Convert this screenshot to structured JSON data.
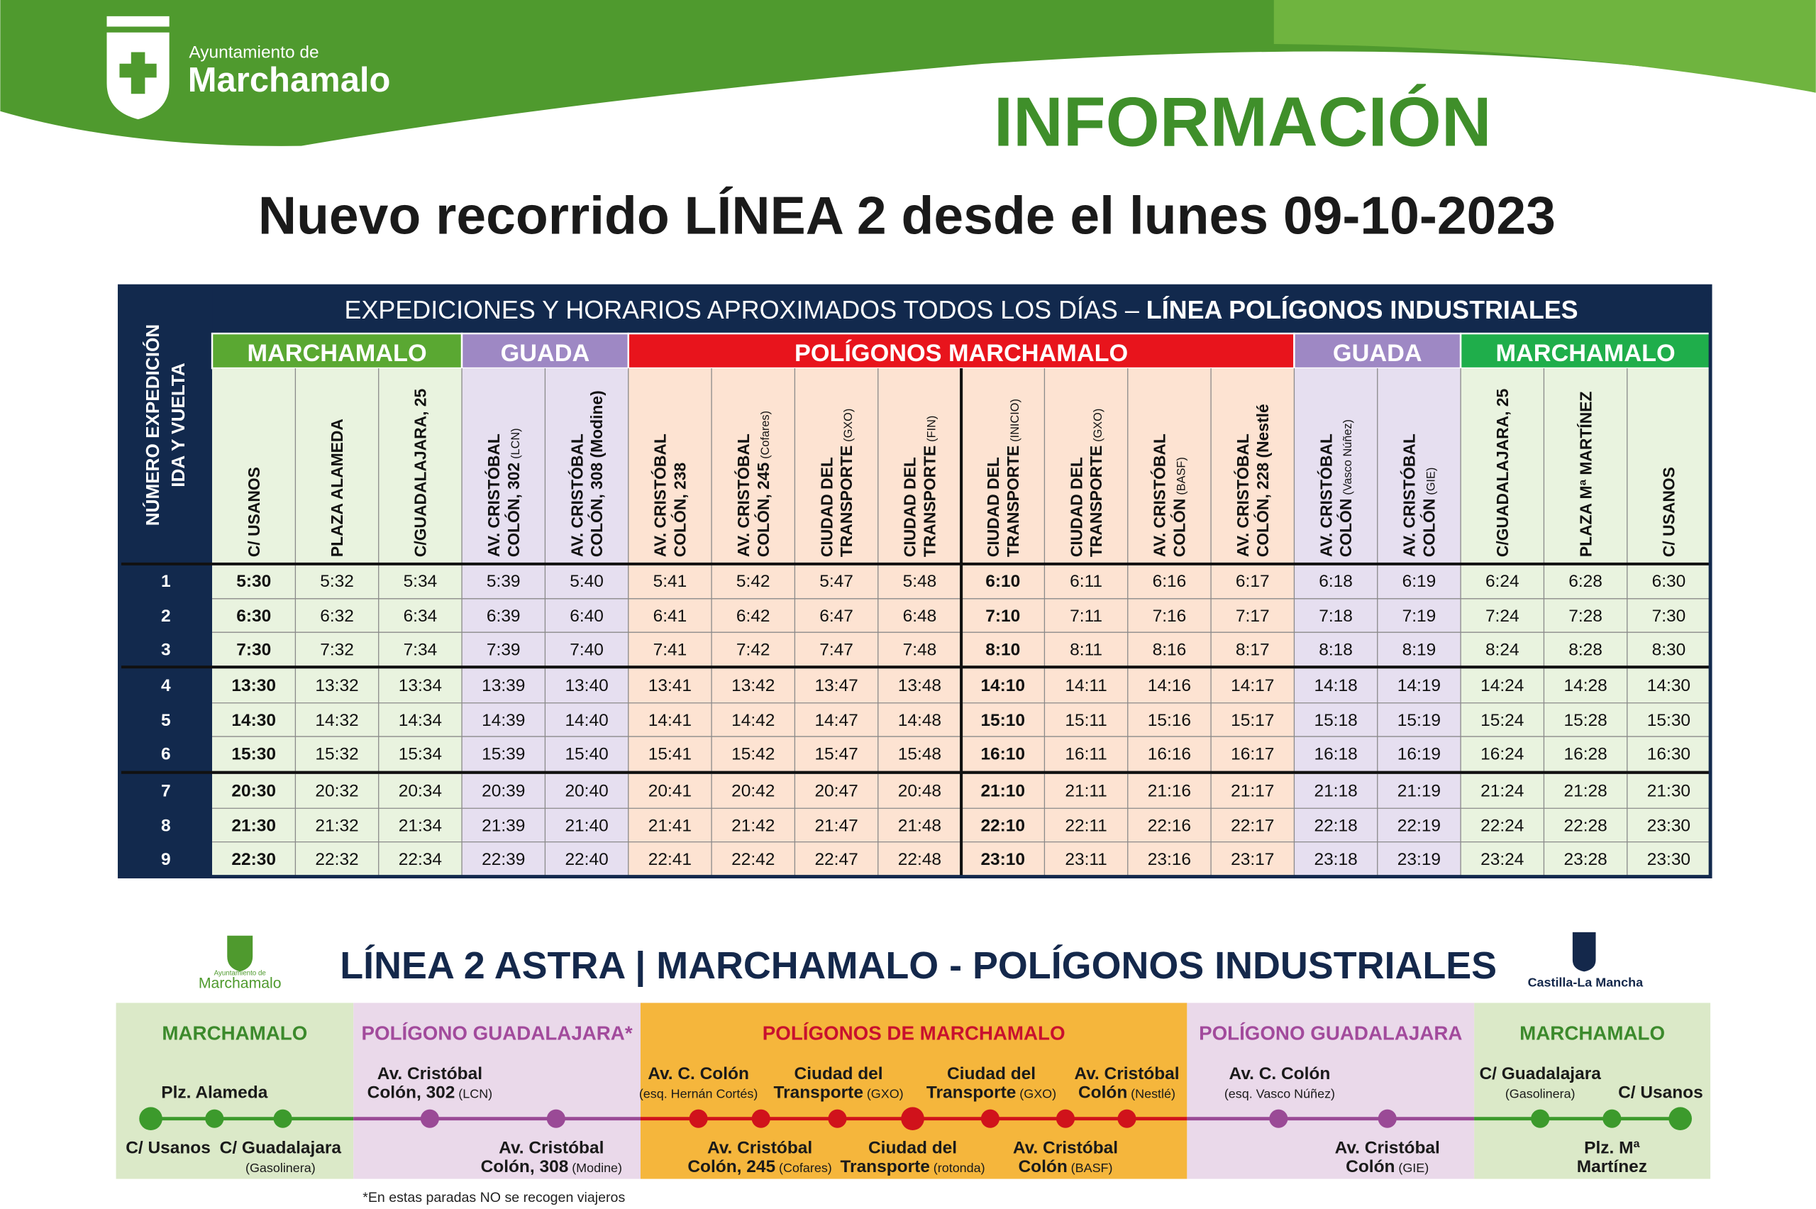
{
  "header": {
    "org_small": "Ayuntamiento de",
    "org": "Marchamalo",
    "label": "INFORMACIÓN",
    "title": "Nuevo recorrido LÍNEA 2 desde el lunes 09-10-2023"
  },
  "table": {
    "corner": [
      "NÚMERO EXPEDICIÓN",
      "IDA Y VUELTA"
    ],
    "banner": [
      "EXPEDICIONES Y HORARIOS APROXIMADOS TODOS LOS DÍAS – ",
      "LÍNEA POLÍGONOS INDUSTRIALES"
    ],
    "zones": [
      {
        "name": "MARCHAMALO",
        "stops": [
          {
            "lines": [
              "C/ USANOS"
            ]
          },
          {
            "lines": [
              "PLAZA ALAMEDA"
            ]
          },
          {
            "lines": [
              "C/GUADALAJARA, 25"
            ]
          }
        ]
      },
      {
        "name": "GUADA",
        "stops": [
          {
            "lines": [
              "AV. CRISTÓBAL",
              "COLÓN, 302"
            ],
            "note": "(LCN)"
          },
          {
            "lines": [
              "AV. CRISTÓBAL",
              "COLÓN, 308 (Modine)"
            ]
          }
        ]
      },
      {
        "name": "POLÍGONOS MARCHAMALO",
        "stops": [
          {
            "lines": [
              "AV. CRISTÓBAL",
              "COLÓN, 238"
            ]
          },
          {
            "lines": [
              "AV. CRISTÓBAL",
              "COLÓN, 245"
            ],
            "note": "(Cofares)"
          },
          {
            "lines": [
              "CIUDAD DEL",
              "TRANSPORTE"
            ],
            "note": "(GXO)"
          },
          {
            "lines": [
              "CIUDAD DEL",
              "TRANSPORTE"
            ],
            "note": "(FIN)"
          },
          {
            "lines": [
              "CIUDAD DEL",
              "TRANSPORTE"
            ],
            "note": "(INICIO)"
          },
          {
            "lines": [
              "CIUDAD DEL",
              "TRANSPORTE"
            ],
            "note": "(GXO)"
          },
          {
            "lines": [
              "AV. CRISTÓBAL",
              "COLÓN"
            ],
            "note": "(BASF)"
          },
          {
            "lines": [
              "AV. CRISTÓBAL",
              "COLÓN, 228 (Nestlé"
            ]
          }
        ]
      },
      {
        "name": "GUADA",
        "stops": [
          {
            "lines": [
              "AV. CRISTÓBAL",
              "COLÓN"
            ],
            "note": "(Vasco Núñez)"
          },
          {
            "lines": [
              "AV. CRISTÓBAL",
              "COLÓN"
            ],
            "note": "(GIE)"
          }
        ]
      },
      {
        "name": "MARCHAMALO",
        "stops": [
          {
            "lines": [
              "C/GUADALAJARA, 25"
            ]
          },
          {
            "lines": [
              "PLAZA Mª MARTÍNEZ"
            ]
          },
          {
            "lines": [
              "C/ USANOS"
            ]
          }
        ]
      }
    ],
    "rows": [
      [
        "1",
        "5:30",
        "5:32",
        "5:34",
        "5:39",
        "5:40",
        "5:41",
        "5:42",
        "5:47",
        "5:48",
        "6:10",
        "6:11",
        "6:16",
        "6:17",
        "6:18",
        "6:19",
        "6:24",
        "6:28",
        "6:30"
      ],
      [
        "2",
        "6:30",
        "6:32",
        "6:34",
        "6:39",
        "6:40",
        "6:41",
        "6:42",
        "6:47",
        "6:48",
        "7:10",
        "7:11",
        "7:16",
        "7:17",
        "7:18",
        "7:19",
        "7:24",
        "7:28",
        "7:30"
      ],
      [
        "3",
        "7:30",
        "7:32",
        "7:34",
        "7:39",
        "7:40",
        "7:41",
        "7:42",
        "7:47",
        "7:48",
        "8:10",
        "8:11",
        "8:16",
        "8:17",
        "8:18",
        "8:19",
        "8:24",
        "8:28",
        "8:30"
      ],
      [
        "4",
        "13:30",
        "13:32",
        "13:34",
        "13:39",
        "13:40",
        "13:41",
        "13:42",
        "13:47",
        "13:48",
        "14:10",
        "14:11",
        "14:16",
        "14:17",
        "14:18",
        "14:19",
        "14:24",
        "14:28",
        "14:30"
      ],
      [
        "5",
        "14:30",
        "14:32",
        "14:34",
        "14:39",
        "14:40",
        "14:41",
        "14:42",
        "14:47",
        "14:48",
        "15:10",
        "15:11",
        "15:16",
        "15:17",
        "15:18",
        "15:19",
        "15:24",
        "15:28",
        "15:30"
      ],
      [
        "6",
        "15:30",
        "15:32",
        "15:34",
        "15:39",
        "15:40",
        "15:41",
        "15:42",
        "15:47",
        "15:48",
        "16:10",
        "16:11",
        "16:16",
        "16:17",
        "16:18",
        "16:19",
        "16:24",
        "16:28",
        "16:30"
      ],
      [
        "7",
        "20:30",
        "20:32",
        "20:34",
        "20:39",
        "20:40",
        "20:41",
        "20:42",
        "20:47",
        "20:48",
        "21:10",
        "21:11",
        "21:16",
        "21:17",
        "21:18",
        "21:19",
        "21:24",
        "21:28",
        "21:30"
      ],
      [
        "8",
        "21:30",
        "21:32",
        "21:34",
        "21:39",
        "21:40",
        "21:41",
        "21:42",
        "21:47",
        "21:48",
        "22:10",
        "22:11",
        "22:16",
        "22:17",
        "22:18",
        "22:19",
        "22:24",
        "22:28",
        "23:30"
      ],
      [
        "9",
        "22:30",
        "22:32",
        "22:34",
        "22:39",
        "22:40",
        "22:41",
        "22:42",
        "22:47",
        "22:48",
        "23:10",
        "23:11",
        "23:16",
        "23:17",
        "23:18",
        "23:19",
        "23:24",
        "23:28",
        "23:30"
      ]
    ]
  },
  "diagram": {
    "title": "LÍNEA 2 ASTRA | MARCHAMALO - POLÍGONOS INDUSTRIALES",
    "logo_left": [
      "Ayuntamiento de",
      "Marchamalo"
    ],
    "logo_right": "Castilla-La Mancha",
    "sections": [
      "MARCHAMALO",
      "POLÍGONO GUADALAJARA*",
      "POLÍGONOS DE MARCHAMALO",
      "POLÍGONO GUADALAJARA",
      "MARCHAMALO"
    ],
    "stops": [
      {
        "lines": [
          "C/ Usanos"
        ]
      },
      {
        "lines": [
          "Plz. Alameda"
        ]
      },
      {
        "lines": [
          "C/ Guadalajara"
        ],
        "note": "(Gasolinera)"
      },
      {
        "lines": [
          "Av. Cristóbal",
          "Colón, 302"
        ],
        "note": "(LCN)"
      },
      {
        "lines": [
          "Av. Cristóbal",
          "Colón, 308"
        ],
        "note": "(Modine)"
      },
      {
        "lines": [
          "Av. C. Colón"
        ],
        "note": "(esq. Hernán Cortés)"
      },
      {
        "lines": [
          "Av. Cristóbal",
          "Colón, 245"
        ],
        "note": "(Cofares)"
      },
      {
        "lines": [
          "Ciudad del",
          "Transporte"
        ],
        "note": "(GXO)"
      },
      {
        "lines": [
          "Ciudad del",
          "Transporte"
        ],
        "note": "(rotonda)"
      },
      {
        "lines": [
          "Ciudad del",
          "Transporte"
        ],
        "note": "(GXO)"
      },
      {
        "lines": [
          "Av. Cristóbal",
          "Colón"
        ],
        "note": "(BASF)"
      },
      {
        "lines": [
          "Av. Cristóbal",
          "Colón"
        ],
        "note": "(Nestlé)"
      },
      {
        "lines": [
          "Av. C. Colón"
        ],
        "note": "(esq. Vasco Núñez)"
      },
      {
        "lines": [
          "Av. Cristóbal",
          "Colón"
        ],
        "note": "(GIE)"
      },
      {
        "lines": [
          "C/ Guadalajara"
        ],
        "note": "(Gasolinera)"
      },
      {
        "lines": [
          "Plz. Mª",
          "Martínez"
        ]
      },
      {
        "lines": [
          "C/ Usanos"
        ]
      }
    ],
    "footnote": "*En estas paradas NO se recogen viajeros"
  }
}
